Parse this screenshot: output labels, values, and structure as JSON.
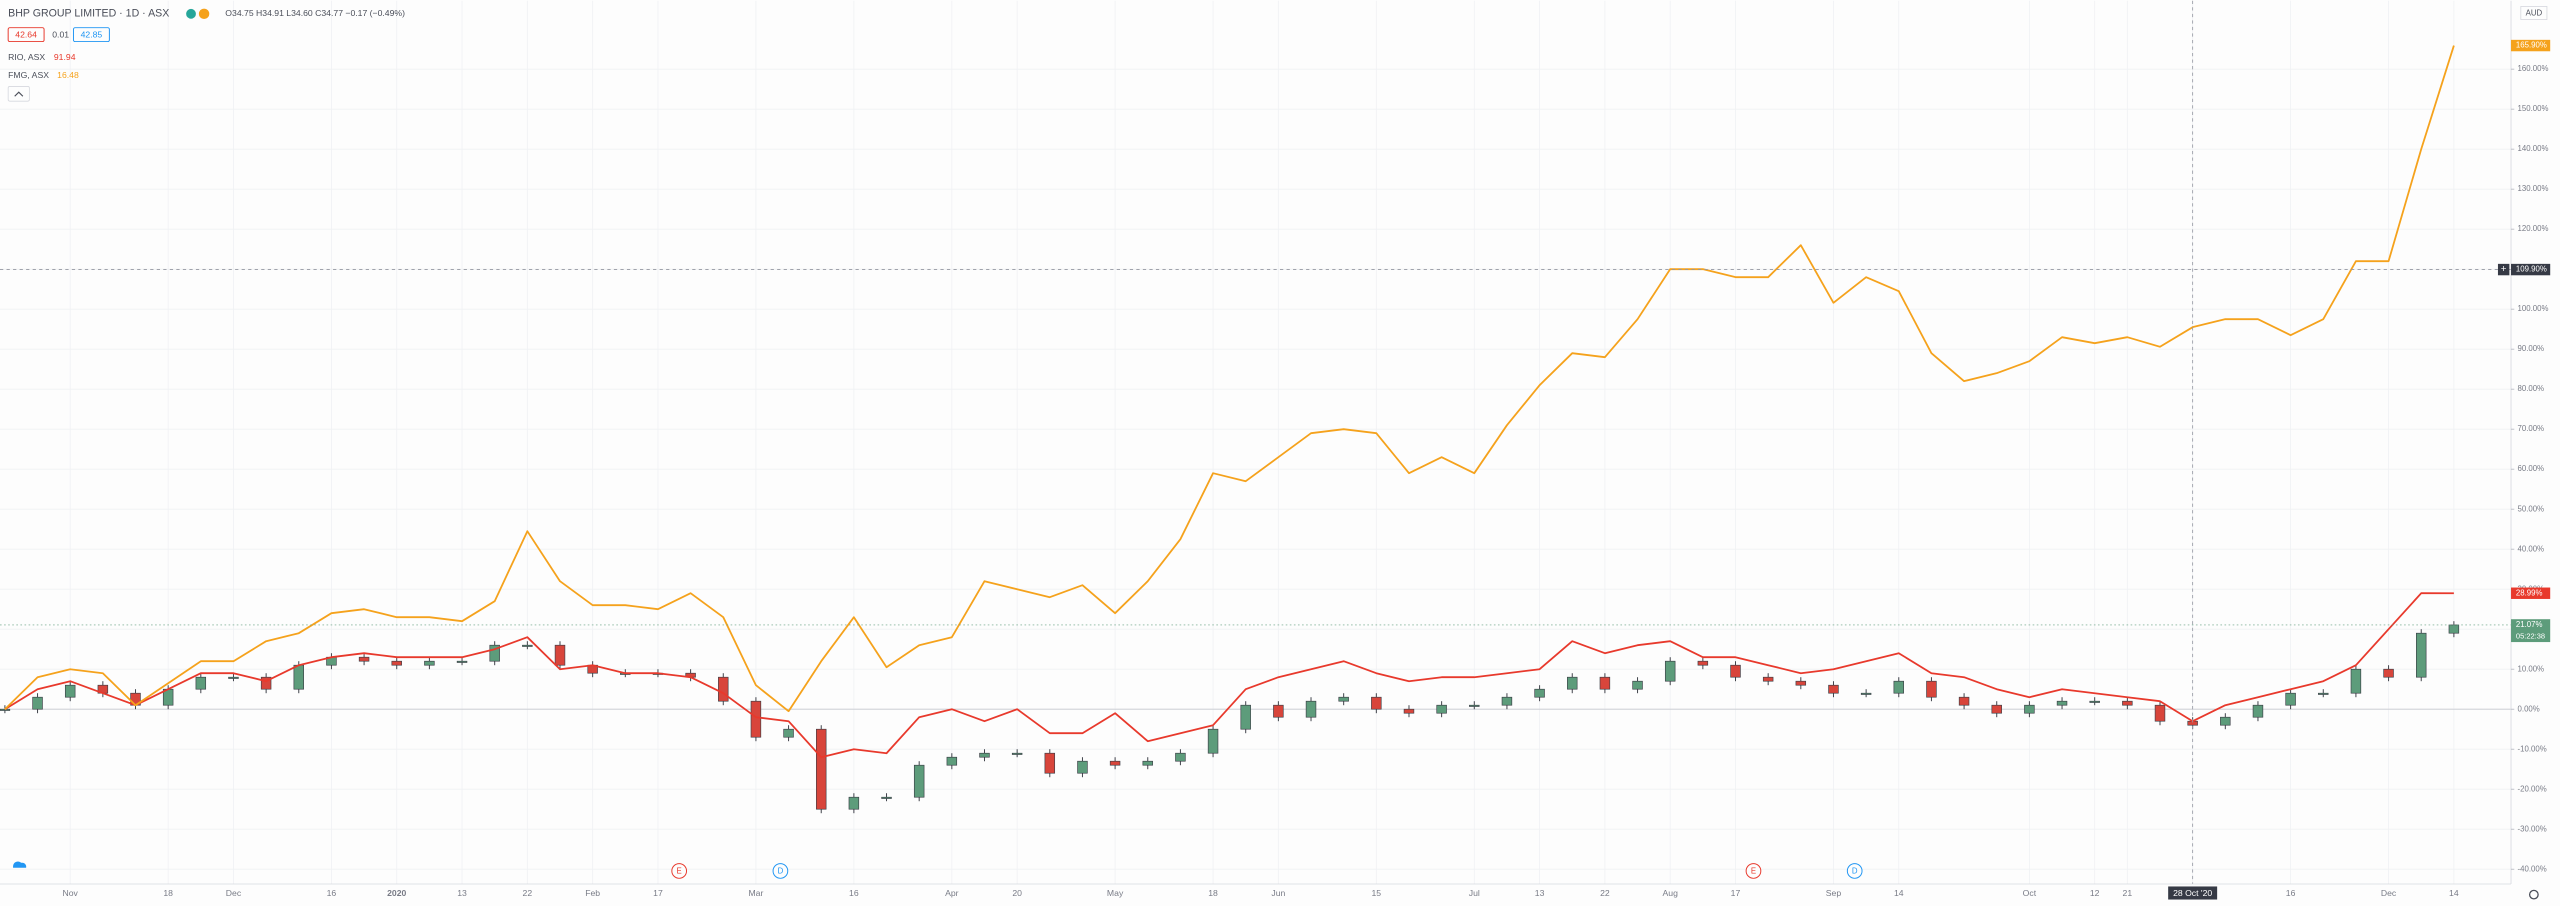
{
  "chart_data": {
    "type": "candlestick",
    "title": "BHP GROUP LIMITED · 1D · ASX",
    "ohlc_text": "O34.75 H34.91 L34.60 C34.77 −0.17 (−0.49%)",
    "quote": {
      "bid": "42.64",
      "spread": "0.01",
      "ask": "42.85"
    },
    "currency": "AUD",
    "categories": [
      null,
      null,
      "Nov",
      null,
      null,
      "18",
      null,
      "Dec",
      null,
      null,
      "16",
      null,
      "2020",
      null,
      "13",
      null,
      "22",
      null,
      "Feb",
      null,
      "17",
      null,
      null,
      "Mar",
      null,
      null,
      "16",
      null,
      null,
      "Apr",
      null,
      "20",
      null,
      null,
      "May",
      null,
      null,
      "18",
      null,
      "Jun",
      null,
      null,
      "15",
      null,
      null,
      "Jul",
      null,
      "13",
      null,
      "22",
      null,
      "Aug",
      null,
      "17",
      null,
      null,
      "Sep",
      null,
      "14",
      null,
      null,
      null,
      "Oct",
      null,
      "12",
      "21",
      null,
      "28 Oct '20",
      null,
      null,
      "16",
      null,
      null,
      "Dec",
      null,
      "14"
    ],
    "candles": {
      "up_color": "#5d9c7b",
      "down_color": "#d8453b",
      "open": [
        0,
        0,
        3,
        6,
        4,
        1,
        5,
        8,
        8,
        5,
        11,
        13,
        12,
        11,
        12,
        12,
        16,
        16,
        11,
        9,
        9,
        9,
        8,
        2,
        -7,
        -5,
        -25,
        -22,
        -22,
        -14,
        -12,
        -11,
        -11,
        -16,
        -13,
        -14,
        -13,
        -11,
        -5,
        1,
        -2,
        2,
        3,
        0,
        -1,
        1,
        1,
        3,
        5,
        8,
        5,
        7,
        12,
        11,
        8,
        7,
        6,
        4,
        4,
        7,
        3,
        1,
        -1,
        1,
        2,
        2,
        1,
        -3,
        -4,
        -2,
        1,
        4,
        4,
        10,
        8,
        19
      ],
      "high": [
        1,
        4,
        7,
        7,
        5,
        6,
        9,
        9,
        9,
        12,
        14,
        14,
        13,
        13,
        13,
        17,
        17,
        17,
        12,
        10,
        10,
        10,
        9,
        3,
        -4,
        -4,
        -21,
        -21,
        -13,
        -11,
        -10,
        -10,
        -10,
        -12,
        -12,
        -12,
        -10,
        -4,
        2,
        2,
        3,
        4,
        4,
        1,
        2,
        2,
        4,
        6,
        9,
        9,
        8,
        13,
        13,
        12,
        9,
        8,
        7,
        5,
        8,
        8,
        4,
        2,
        2,
        3,
        3,
        3,
        2,
        -2,
        -1,
        2,
        5,
        5,
        11,
        11,
        20,
        22
      ],
      "low": [
        -1,
        -1,
        2,
        3,
        0,
        0,
        4,
        7,
        4,
        4,
        10,
        11,
        10,
        10,
        11,
        11,
        15,
        10,
        8,
        8,
        8,
        7,
        1,
        -8,
        -8,
        -26,
        -26,
        -23,
        -23,
        -15,
        -13,
        -12,
        -17,
        -17,
        -15,
        -15,
        -14,
        -12,
        -6,
        -3,
        -3,
        1,
        -1,
        -2,
        -2,
        0,
        0,
        2,
        4,
        4,
        4,
        6,
        10,
        7,
        6,
        5,
        3,
        3,
        3,
        2,
        0,
        -2,
        -2,
        0,
        1,
        0,
        -4,
        -5,
        -5,
        -3,
        0,
        3,
        3,
        7,
        7,
        18
      ],
      "close": [
        0,
        3,
        6,
        4,
        1,
        5,
        8,
        8,
        5,
        11,
        13,
        12,
        11,
        12,
        12,
        16,
        16,
        11,
        9,
        9,
        9,
        8,
        2,
        -7,
        -5,
        -25,
        -22,
        -22,
        -14,
        -12,
        -11,
        -11,
        -16,
        -13,
        -14,
        -13,
        -11,
        -5,
        1,
        -2,
        2,
        3,
        0,
        -1,
        1,
        1,
        3,
        5,
        8,
        5,
        7,
        12,
        11,
        8,
        7,
        6,
        4,
        4,
        7,
        3,
        1,
        -1,
        1,
        2,
        2,
        1,
        -3,
        -4,
        -2,
        1,
        4,
        4,
        10,
        8,
        19,
        21.07
      ],
      "last_label": "21.07%",
      "countdown": "05:22:38"
    },
    "series": [
      {
        "name": "RIO, ASX",
        "legend_value": "91.94",
        "color": "#e8392c",
        "values": [
          0,
          5,
          7,
          4,
          1,
          5,
          9,
          9,
          7,
          11,
          13,
          14,
          13,
          13,
          13,
          15,
          18,
          10,
          11,
          9,
          9,
          8,
          4,
          -2,
          -3,
          -12,
          -10,
          -11,
          -2,
          0,
          -3,
          0,
          -6,
          -6,
          -1,
          -8,
          -6,
          -4,
          5,
          8,
          10,
          12,
          9,
          7,
          8,
          8,
          9,
          10,
          17,
          14,
          16,
          17,
          13,
          13,
          11,
          9,
          10,
          12,
          14,
          9,
          8,
          5,
          3,
          5,
          4,
          3,
          2,
          -3,
          1,
          3,
          5,
          7,
          11,
          20,
          29,
          28.99
        ],
        "last_label": "28.99%"
      },
      {
        "name": "FMG, ASX",
        "legend_value": "16.48",
        "color": "#f5a21c",
        "values": [
          0,
          8,
          10,
          9,
          1,
          6.5,
          12,
          12,
          17,
          19,
          24,
          25,
          23,
          23,
          22,
          27,
          44.5,
          32,
          26,
          26,
          25,
          29,
          23,
          6,
          -0.5,
          12,
          23,
          10.5,
          16,
          18,
          32,
          30,
          28,
          31,
          24,
          32,
          42.5,
          59,
          57,
          63,
          69,
          70,
          69,
          59,
          63,
          59,
          71,
          81,
          89,
          88,
          97.5,
          110,
          110,
          108,
          108,
          116,
          101.6,
          108,
          104.5,
          89,
          82,
          84,
          87,
          93,
          91.5,
          93,
          90.6,
          95.5,
          97.5,
          97.5,
          93.5,
          97.5,
          112,
          112,
          140,
          165.9
        ],
        "last_label": "165.90%"
      }
    ],
    "ylim": [
      -43.7,
      177.1
    ],
    "yticks": [
      {
        "value": -40,
        "label": "-40.00%"
      },
      {
        "value": -30,
        "label": "-30.00%"
      },
      {
        "value": -20,
        "label": "-20.00%"
      },
      {
        "value": -10,
        "label": "-10.00%"
      },
      {
        "value": 0,
        "label": "0.00%"
      },
      {
        "value": 10,
        "label": "10.00%"
      },
      {
        "value": 20,
        "label": "20.00%"
      },
      {
        "value": 30,
        "label": "30.00%"
      },
      {
        "value": 40,
        "label": "40.00%"
      },
      {
        "value": 50,
        "label": "50.00%"
      },
      {
        "value": 60,
        "label": "60.00%"
      },
      {
        "value": 70,
        "label": "70.00%"
      },
      {
        "value": 80,
        "label": "80.00%"
      },
      {
        "value": 90,
        "label": "90.00%"
      },
      {
        "value": 100,
        "label": "100.00%"
      },
      {
        "value": 110,
        "label": "110.00%"
      },
      {
        "value": 120,
        "label": "120.00%"
      },
      {
        "value": 130,
        "label": "130.00%"
      },
      {
        "value": 140,
        "label": "140.00%"
      },
      {
        "value": 150,
        "label": "150.00%"
      },
      {
        "value": 160,
        "label": "160.00%"
      }
    ],
    "crosshair": {
      "value": 109.9,
      "label": "109.90%"
    },
    "event_markers": [
      "E",
      "D",
      "E",
      "D"
    ],
    "grid": true
  }
}
